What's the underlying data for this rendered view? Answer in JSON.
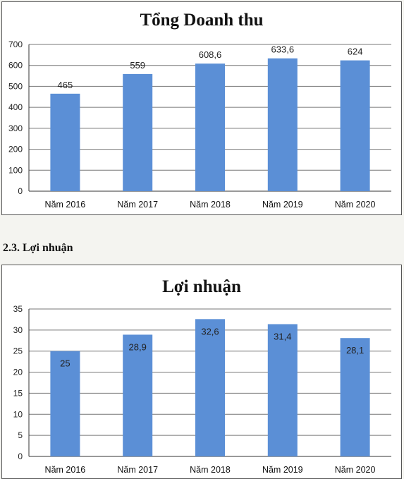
{
  "section_heading": "2.3. Lợi nhuận",
  "chart_data": [
    {
      "type": "bar",
      "title": "Tổng Doanh thu",
      "categories": [
        "Năm 2016",
        "Năm 2017",
        "Năm 2018",
        "Năm 2019",
        "Năm 2020"
      ],
      "values": [
        465,
        559,
        608.6,
        633.6,
        624
      ],
      "data_labels": [
        "465",
        "559",
        "608,6",
        "633,6",
        "624"
      ],
      "data_label_position": "above",
      "ylim": [
        0,
        700
      ],
      "yticks": [
        0,
        100,
        200,
        300,
        400,
        500,
        600,
        700
      ],
      "xlabel": "",
      "ylabel": "",
      "grid": true,
      "legend": "none",
      "bar_color": "#5b8fd6"
    },
    {
      "type": "bar",
      "title": "Lợi nhuận",
      "categories": [
        "Năm 2016",
        "Năm 2017",
        "Năm 2018",
        "Năm 2019",
        "Năm 2020"
      ],
      "values": [
        25,
        28.9,
        32.6,
        31.4,
        28.1
      ],
      "data_labels": [
        "25",
        "28,9",
        "32,6",
        "31,4",
        "28,1"
      ],
      "data_label_position": "inside-top",
      "ylim": [
        0,
        35
      ],
      "yticks": [
        0,
        5,
        10,
        15,
        20,
        25,
        30,
        35
      ],
      "xlabel": "",
      "ylabel": "",
      "grid": true,
      "legend": "none",
      "bar_color": "#5b8fd6"
    }
  ]
}
